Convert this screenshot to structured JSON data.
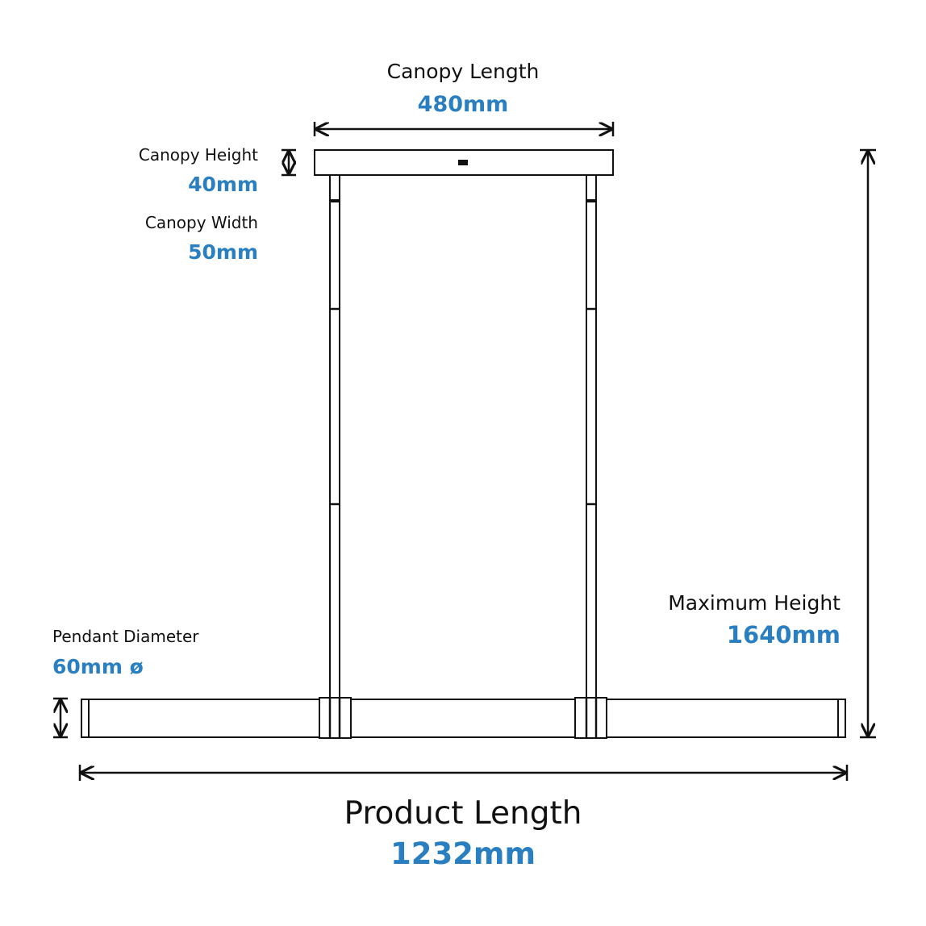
{
  "dimensions": {
    "canopy_length": {
      "label": "Canopy Length",
      "value": "480mm"
    },
    "canopy_height": {
      "label": "Canopy Height",
      "value": "40mm"
    },
    "canopy_width": {
      "label": "Canopy Width",
      "value": "50mm"
    },
    "maximum_height": {
      "label": "Maximum Height",
      "value": "1640mm"
    },
    "pendant_diameter": {
      "label": "Pendant Diameter",
      "value": "60mm ø"
    },
    "product_length": {
      "label": "Product Length",
      "value": "1232mm"
    }
  }
}
